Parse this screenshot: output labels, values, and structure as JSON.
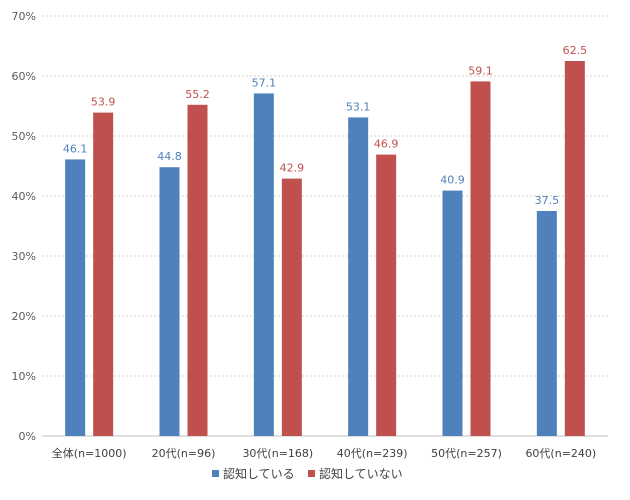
{
  "chart_data": {
    "type": "bar",
    "title": "",
    "xlabel": "",
    "ylabel": "",
    "ylim": [
      0,
      70
    ],
    "y_tick_step": 10,
    "y_tick_suffix": "%",
    "grid": "horizontal-dashed",
    "legend_position": "bottom",
    "categories": [
      "全体(n=1000)",
      "20代(n=96)",
      "30代(n=168)",
      "40代(n=239)",
      "50代(n=257)",
      "60代(n=240)"
    ],
    "series": [
      {
        "name": "認知している",
        "color": "#4f81bd",
        "label_color": "#4f81bd",
        "values": [
          46.1,
          44.8,
          57.1,
          53.1,
          40.9,
          37.5
        ]
      },
      {
        "name": "認知していない",
        "color": "#c0504d",
        "label_color": "#c0504d",
        "values": [
          53.9,
          55.2,
          42.9,
          46.9,
          59.1,
          62.5
        ]
      }
    ]
  }
}
